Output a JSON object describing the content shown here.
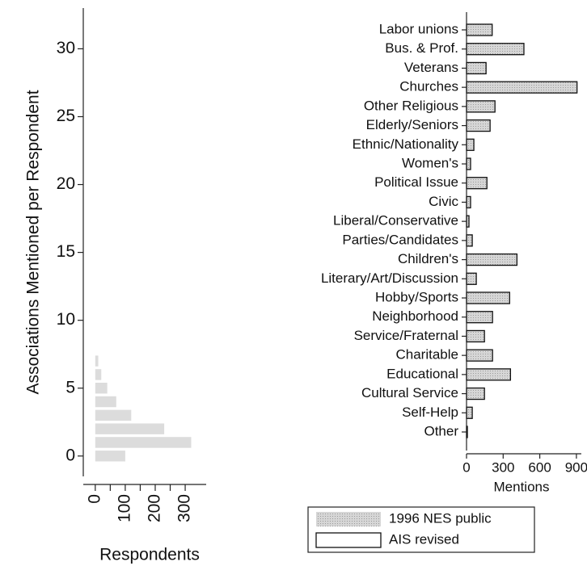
{
  "chart_data": [
    {
      "type": "barh",
      "y_label": "Associations Mentioned per Respondent",
      "x_label": "Respondents",
      "categories": [
        0,
        1,
        2,
        3,
        4,
        5,
        6,
        7
      ],
      "values": [
        100,
        320,
        230,
        120,
        70,
        40,
        20,
        10
      ],
      "color": "#dcdcdc",
      "xlim": [
        -40,
        370
      ],
      "xticks": [
        0,
        100,
        200,
        300
      ],
      "xminorticks": [
        50,
        150,
        250
      ],
      "ylim": [
        -1.5,
        33
      ],
      "yticks": [
        0,
        5,
        10,
        15,
        20,
        25,
        30
      ]
    },
    {
      "type": "barh_overlay",
      "x_label": "Mentions",
      "categories": [
        "Labor unions",
        "Bus. & Prof.",
        "Veterans",
        "Churches",
        "Other Religious",
        "Elderly/Seniors",
        "Ethnic/Nationality",
        "Women's",
        "Political Issue",
        "Civic",
        "Liberal/Conservative",
        "Parties/Candidates",
        "Children's",
        "Literary/Art/Discussion",
        "Hobby/Sports",
        "Neighborhood",
        "Service/Fraternal",
        "Charitable",
        "Educational",
        "Cultural Service",
        "Self-Help",
        "Other"
      ],
      "series": [
        {
          "name": "1996 NES public",
          "color": "#c8c8c8",
          "values": [
            210,
            470,
            160,
            905,
            233,
            193,
            60,
            33,
            167,
            33,
            20,
            47,
            413,
            80,
            353,
            213,
            147,
            213,
            360,
            147,
            47,
            7
          ]
        },
        {
          "name": "AIS revised",
          "color": "#111111",
          "values": [
            210,
            470,
            160,
            905,
            233,
            193,
            60,
            33,
            167,
            33,
            20,
            47,
            413,
            80,
            353,
            213,
            147,
            213,
            360,
            147,
            47,
            7
          ]
        }
      ],
      "xlim": [
        0,
        940
      ],
      "xticks": [
        0,
        300,
        600,
        900
      ]
    }
  ]
}
